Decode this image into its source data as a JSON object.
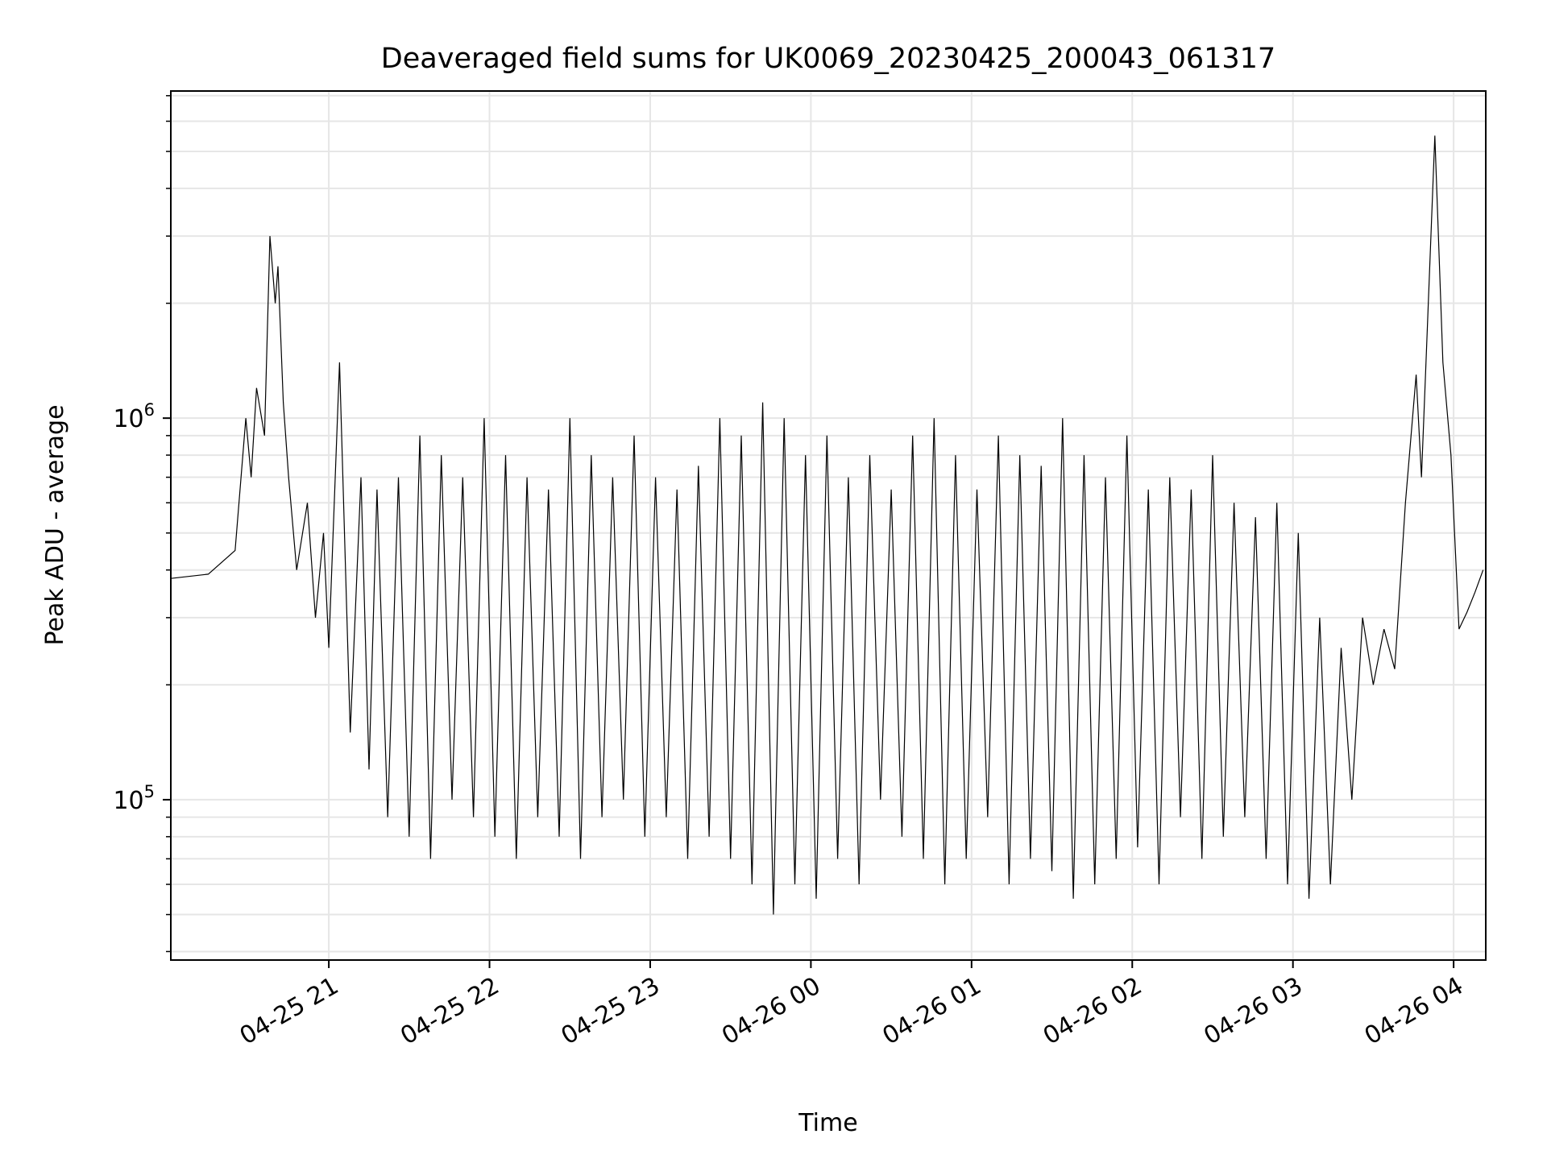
{
  "chart_data": {
    "type": "line",
    "title": "Deaveraged field sums for UK0069_20230425_200043_061317",
    "xlabel": "Time",
    "ylabel": "Peak ADU - average",
    "yscale": "log",
    "ylim": [
      38000,
      7200000
    ],
    "xlim": [
      "2023-04-25 20:01",
      "2023-04-26 04:12"
    ],
    "x_ticks": [
      {
        "t": "2023-04-25 21:00",
        "label": "04-25 21"
      },
      {
        "t": "2023-04-25 22:00",
        "label": "04-25 22"
      },
      {
        "t": "2023-04-25 23:00",
        "label": "04-25 23"
      },
      {
        "t": "2023-04-26 00:00",
        "label": "04-26 00"
      },
      {
        "t": "2023-04-26 01:00",
        "label": "04-26 01"
      },
      {
        "t": "2023-04-26 02:00",
        "label": "04-26 02"
      },
      {
        "t": "2023-04-26 03:00",
        "label": "04-26 03"
      },
      {
        "t": "2023-04-26 04:00",
        "label": "04-26 04"
      }
    ],
    "y_major_ticks": [
      {
        "value": 100000,
        "base": "10",
        "exp": "5"
      },
      {
        "value": 1000000,
        "base": "10",
        "exp": "6"
      }
    ],
    "grid": true,
    "line_color": "#000000",
    "series": [
      {
        "x": [
          "2023-04-25 20:01",
          "2023-04-25 20:15",
          "2023-04-25 20:25",
          "2023-04-25 20:29",
          "2023-04-25 20:31",
          "2023-04-25 20:33",
          "2023-04-25 20:36",
          "2023-04-25 20:38",
          "2023-04-25 20:40",
          "2023-04-25 20:41",
          "2023-04-25 20:43",
          "2023-04-25 20:45",
          "2023-04-25 20:48",
          "2023-04-25 20:52",
          "2023-04-25 20:55",
          "2023-04-25 20:58",
          "2023-04-25 21:00",
          "2023-04-25 21:04",
          "2023-04-25 21:08",
          "2023-04-25 21:12",
          "2023-04-25 21:15",
          "2023-04-25 21:18",
          "2023-04-25 21:22",
          "2023-04-25 21:26",
          "2023-04-25 21:30",
          "2023-04-25 21:34",
          "2023-04-25 21:38",
          "2023-04-25 21:42",
          "2023-04-25 21:46",
          "2023-04-25 21:50",
          "2023-04-25 21:54",
          "2023-04-25 21:58",
          "2023-04-25 22:02",
          "2023-04-25 22:06",
          "2023-04-25 22:10",
          "2023-04-25 22:14",
          "2023-04-25 22:18",
          "2023-04-25 22:22",
          "2023-04-25 22:26",
          "2023-04-25 22:30",
          "2023-04-25 22:34",
          "2023-04-25 22:38",
          "2023-04-25 22:42",
          "2023-04-25 22:46",
          "2023-04-25 22:50",
          "2023-04-25 22:54",
          "2023-04-25 22:58",
          "2023-04-25 23:02",
          "2023-04-25 23:06",
          "2023-04-25 23:10",
          "2023-04-25 23:14",
          "2023-04-25 23:18",
          "2023-04-25 23:22",
          "2023-04-25 23:26",
          "2023-04-25 23:30",
          "2023-04-25 23:34",
          "2023-04-25 23:38",
          "2023-04-25 23:42",
          "2023-04-25 23:46",
          "2023-04-25 23:50",
          "2023-04-25 23:54",
          "2023-04-25 23:58",
          "2023-04-26 00:02",
          "2023-04-26 00:06",
          "2023-04-26 00:10",
          "2023-04-26 00:14",
          "2023-04-26 00:18",
          "2023-04-26 00:22",
          "2023-04-26 00:26",
          "2023-04-26 00:30",
          "2023-04-26 00:34",
          "2023-04-26 00:38",
          "2023-04-26 00:42",
          "2023-04-26 00:46",
          "2023-04-26 00:50",
          "2023-04-26 00:54",
          "2023-04-26 00:58",
          "2023-04-26 01:02",
          "2023-04-26 01:06",
          "2023-04-26 01:10",
          "2023-04-26 01:14",
          "2023-04-26 01:18",
          "2023-04-26 01:22",
          "2023-04-26 01:26",
          "2023-04-26 01:30",
          "2023-04-26 01:34",
          "2023-04-26 01:38",
          "2023-04-26 01:42",
          "2023-04-26 01:46",
          "2023-04-26 01:50",
          "2023-04-26 01:54",
          "2023-04-26 01:58",
          "2023-04-26 02:02",
          "2023-04-26 02:06",
          "2023-04-26 02:10",
          "2023-04-26 02:14",
          "2023-04-26 02:18",
          "2023-04-26 02:22",
          "2023-04-26 02:26",
          "2023-04-26 02:30",
          "2023-04-26 02:34",
          "2023-04-26 02:38",
          "2023-04-26 02:42",
          "2023-04-26 02:46",
          "2023-04-26 02:50",
          "2023-04-26 02:54",
          "2023-04-26 02:58",
          "2023-04-26 03:02",
          "2023-04-26 03:06",
          "2023-04-26 03:10",
          "2023-04-26 03:14",
          "2023-04-26 03:18",
          "2023-04-26 03:22",
          "2023-04-26 03:26",
          "2023-04-26 03:30",
          "2023-04-26 03:34",
          "2023-04-26 03:38",
          "2023-04-26 03:42",
          "2023-04-26 03:46",
          "2023-04-26 03:48",
          "2023-04-26 03:50",
          "2023-04-26 03:53",
          "2023-04-26 03:56",
          "2023-04-26 03:59",
          "2023-04-26 04:02",
          "2023-04-26 04:05",
          "2023-04-26 04:08",
          "2023-04-26 04:11"
        ],
        "values": [
          380000,
          390000,
          450000,
          1000000,
          700000,
          1200000,
          900000,
          3000000,
          2000000,
          2500000,
          1100000,
          700000,
          400000,
          600000,
          300000,
          500000,
          250000,
          1400000,
          150000,
          700000,
          120000,
          650000,
          90000,
          700000,
          80000,
          900000,
          70000,
          800000,
          100000,
          700000,
          90000,
          1000000,
          80000,
          800000,
          70000,
          700000,
          90000,
          650000,
          80000,
          1000000,
          70000,
          800000,
          90000,
          700000,
          100000,
          900000,
          80000,
          700000,
          90000,
          650000,
          70000,
          750000,
          80000,
          1000000,
          70000,
          900000,
          60000,
          1100000,
          50000,
          1000000,
          60000,
          800000,
          55000,
          900000,
          70000,
          700000,
          60000,
          800000,
          100000,
          650000,
          80000,
          900000,
          70000,
          1000000,
          60000,
          800000,
          70000,
          650000,
          90000,
          900000,
          60000,
          800000,
          70000,
          750000,
          65000,
          1000000,
          55000,
          800000,
          60000,
          700000,
          70000,
          900000,
          75000,
          650000,
          60000,
          700000,
          90000,
          650000,
          70000,
          800000,
          80000,
          600000,
          90000,
          550000,
          70000,
          600000,
          60000,
          500000,
          55000,
          300000,
          60000,
          250000,
          100000,
          300000,
          200000,
          280000,
          220000,
          600000,
          1300000,
          700000,
          1600000,
          5500000,
          1400000,
          800000,
          280000,
          310000,
          350000,
          400000
        ]
      }
    ]
  }
}
